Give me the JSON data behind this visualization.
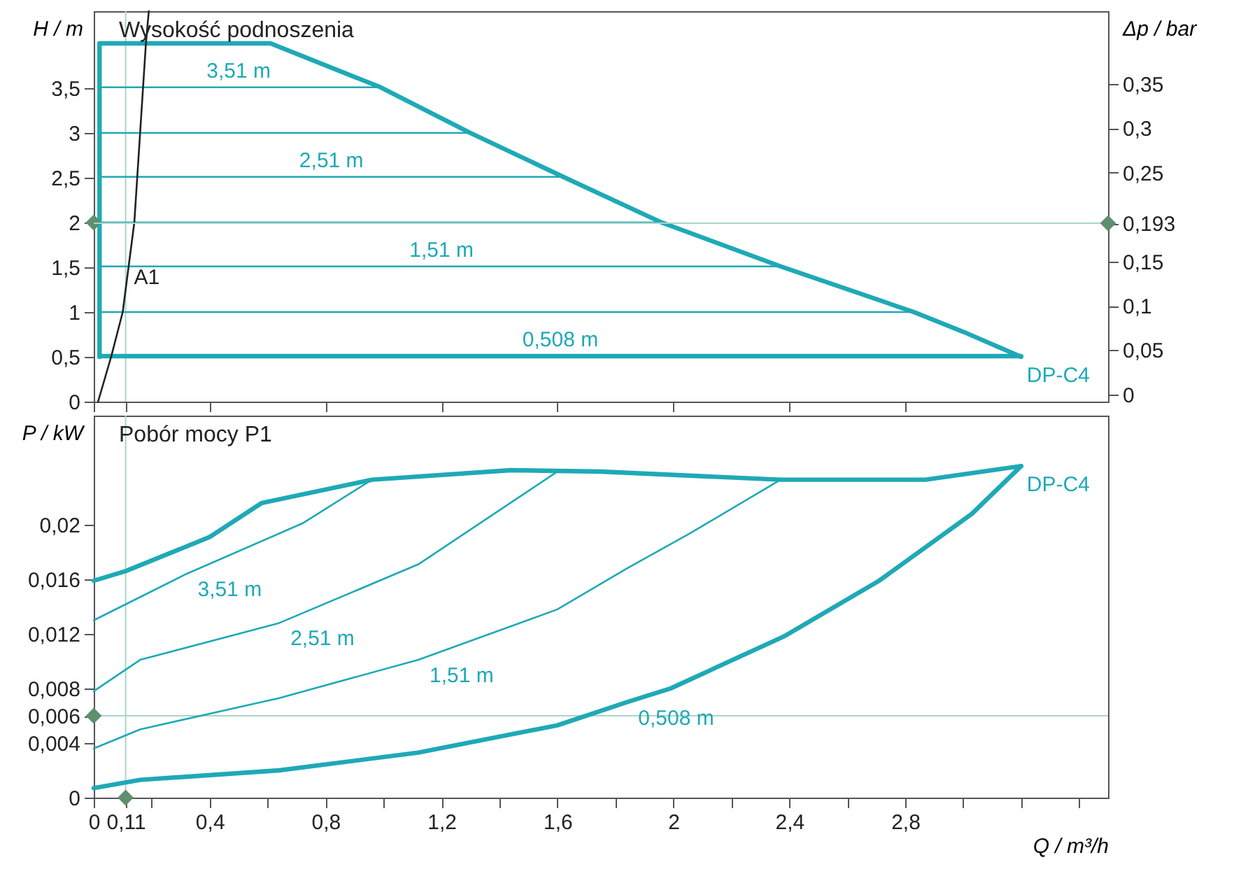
{
  "chart_data": [
    {
      "type": "line",
      "title": "Wysokość podnoszenia",
      "ylabel": "H / m",
      "y2label": "Δp / bar",
      "tick_labels": "y",
      "xlim": [
        0,
        3.5
      ],
      "xticks": [
        {
          "value": 0,
          "label": null
        },
        {
          "value": 0.11,
          "label": null
        },
        {
          "value": 0.4,
          "label": null
        },
        {
          "value": 0.8,
          "label": null
        },
        {
          "value": 1.2,
          "label": null
        },
        {
          "value": 1.6,
          "label": null
        },
        {
          "value": 2,
          "label": null
        },
        {
          "value": 2.4,
          "label": null
        },
        {
          "value": 2.8,
          "label": null
        }
      ],
      "ylim": [
        0,
        4.36
      ],
      "yticks": [
        0,
        {
          "value": 0.5,
          "label": "0,5"
        },
        1,
        {
          "value": 1.5,
          "label": "1,5"
        },
        2,
        {
          "value": 2.5,
          "label": "2,5"
        },
        3,
        {
          "value": 3.5,
          "label": "3,5"
        }
      ],
      "y2lim": [
        -0.008,
        0.432
      ],
      "y2ticks": [
        0,
        {
          "value": 0.05,
          "label": "0,05"
        },
        {
          "value": 0.1,
          "label": "0,1"
        },
        {
          "value": 0.15,
          "label": "0,15"
        },
        {
          "value": 0.193,
          "label": "0,193"
        },
        {
          "value": 0.25,
          "label": "0,25"
        },
        {
          "value": 0.3,
          "label": "0,3"
        },
        {
          "value": 0.35,
          "label": "0,35"
        }
      ],
      "series": [
        {
          "name": "DP-C4",
          "color": "#1fa9b6",
          "x": [
            0.02,
            0.02,
            0.61,
            0.99,
            1.3,
            1.62,
            1.96,
            2.37,
            2.83,
            3.0,
            3.2
          ],
          "values": [
            0.5,
            4.0,
            4.0,
            3.51,
            3.0,
            2.51,
            2.0,
            1.51,
            1.0,
            0.78,
            0.5
          ]
        },
        {
          "name": "0,508 m",
          "color": "#1fa9b6",
          "x": [
            0.02,
            1.61,
            3.2
          ],
          "values": [
            0.508,
            0.508,
            0.508
          ]
        },
        {
          "name": "3,51 m",
          "color": "#1fa9b6",
          "x": [
            0.02,
            0.5,
            0.99
          ],
          "values": [
            3.51,
            3.51,
            3.51
          ]
        },
        {
          "color": "#1fa9b6",
          "x": [
            0.02,
            1.3
          ],
          "values": [
            3.0,
            3.0
          ]
        },
        {
          "name": "2,51 m",
          "color": "#1fa9b6",
          "x": [
            0.02,
            0.82,
            1.62
          ],
          "values": [
            2.51,
            2.51,
            2.51
          ]
        },
        {
          "color": "#1fa9b6",
          "x": [
            0.02,
            1.96
          ],
          "values": [
            2.0,
            2.0
          ]
        },
        {
          "name": "1,51 m",
          "color": "#1fa9b6",
          "x": [
            0.02,
            1.2,
            2.37
          ],
          "values": [
            1.51,
            1.51,
            1.51
          ]
        },
        {
          "color": "#1fa9b6",
          "x": [
            0.02,
            2.83
          ],
          "values": [
            1.0,
            1.0
          ]
        },
        {
          "color": "#222222",
          "x": [
            0.015,
            0.06,
            0.1,
            0.14,
            0.16,
            0.18,
            0.19
          ],
          "values": [
            0,
            0.5,
            1.0,
            2.0,
            3.0,
            4.0,
            4.36
          ]
        },
        {
          "type": "scatter",
          "marker": "diamond",
          "color": "#5e8f6e",
          "x": [
            0
          ],
          "values": [
            2.0
          ]
        },
        {
          "type": "scatter",
          "marker": "diamond",
          "color": "#5e8f6e",
          "axis": "y2",
          "x": [
            3.5
          ],
          "values": [
            0.193
          ]
        }
      ],
      "ref_lines": [
        {
          "axis": "x",
          "value": 0.11,
          "color": "#a9d5c8"
        },
        {
          "axis": "y2",
          "value": 0.193,
          "color": "#a9d5c8"
        }
      ],
      "annotations": [
        {
          "text": "A1",
          "x": 0.11,
          "y": 1.5
        }
      ]
    },
    {
      "type": "line",
      "title": "Pobór mocy P1",
      "xlabel": "Q / m³/h",
      "ylabel": "P / kW",
      "xlim": [
        0,
        3.5
      ],
      "xticks": [
        0,
        {
          "value": 0.11,
          "label": "0,11"
        },
        {
          "value": 0.2,
          "label": null
        },
        {
          "value": 0.4,
          "label": "0,4"
        },
        {
          "value": 0.6,
          "label": null
        },
        {
          "value": 0.8,
          "label": "0,8"
        },
        {
          "value": 1.0,
          "label": null
        },
        {
          "value": 1.2,
          "label": "1,2"
        },
        {
          "value": 1.4,
          "label": null
        },
        {
          "value": 1.6,
          "label": "1,6"
        },
        {
          "value": 1.8,
          "label": null
        },
        2,
        {
          "value": 2.2,
          "label": null
        },
        {
          "value": 2.4,
          "label": "2,4"
        },
        {
          "value": 2.6,
          "label": null
        },
        {
          "value": 2.8,
          "label": "2,8"
        },
        {
          "value": 3.0,
          "label": null
        },
        {
          "value": 3.2,
          "label": null
        },
        {
          "value": 3.4,
          "label": null
        }
      ],
      "ylim": [
        0,
        0.028
      ],
      "yticks": [
        0,
        {
          "value": 0.004,
          "label": "0,004"
        },
        {
          "value": 0.006,
          "label": "0,006"
        },
        {
          "value": 0.008,
          "label": "0,008"
        },
        {
          "value": 0.012,
          "label": "0,012"
        },
        {
          "value": 0.016,
          "label": "0,016"
        },
        {
          "value": 0.02,
          "label": "0,02"
        }
      ],
      "series": [
        {
          "name": "DP-C4",
          "color": "#1fa9b6",
          "x": [
            0,
            0.11,
            0.4,
            0.58,
            0.96,
            1.44,
            1.75,
            2.37,
            2.87,
            3.2
          ],
          "values": [
            0.0159,
            0.0166,
            0.0191,
            0.0216,
            0.0233,
            0.024,
            0.0239,
            0.0233,
            0.0233,
            0.0243
          ]
        },
        {
          "name": "0,508 m",
          "color": "#1fa9b6",
          "x": [
            0,
            0.16,
            0.64,
            1.12,
            1.6,
            1.84,
            1.99,
            2.38,
            2.71,
            3.03,
            3.2
          ],
          "values": [
            0.0007,
            0.0013,
            0.002,
            0.0033,
            0.0053,
            0.007,
            0.008,
            0.0118,
            0.0159,
            0.0208,
            0.0243
          ]
        },
        {
          "name": "3,51 m",
          "color": "#1fa9b6",
          "x": [
            0,
            0.32,
            0.72,
            0.96
          ],
          "values": [
            0.013,
            0.0164,
            0.0201,
            0.0233
          ]
        },
        {
          "name": "2,51 m",
          "color": "#1fa9b6",
          "x": [
            0,
            0.16,
            0.64,
            1.12,
            1.6
          ],
          "values": [
            0.0078,
            0.0101,
            0.0128,
            0.0171,
            0.0239
          ]
        },
        {
          "name": "1,51 m",
          "color": "#1fa9b6",
          "x": [
            0,
            0.16,
            0.64,
            1.12,
            1.6,
            1.84,
            2.06,
            2.37
          ],
          "values": [
            0.0036,
            0.005,
            0.0073,
            0.0101,
            0.0138,
            0.0168,
            0.0194,
            0.0233
          ]
        },
        {
          "type": "scatter",
          "marker": "diamond",
          "color": "#5e8f6e",
          "x": [
            0,
            0.11
          ],
          "values": [
            0.006,
            0
          ]
        }
      ],
      "ref_lines": [
        {
          "axis": "x",
          "value": 0.11,
          "color": "#a9d5c8"
        },
        {
          "axis": "y",
          "value": 0.006,
          "color": "#a9d5c8"
        }
      ]
    }
  ]
}
